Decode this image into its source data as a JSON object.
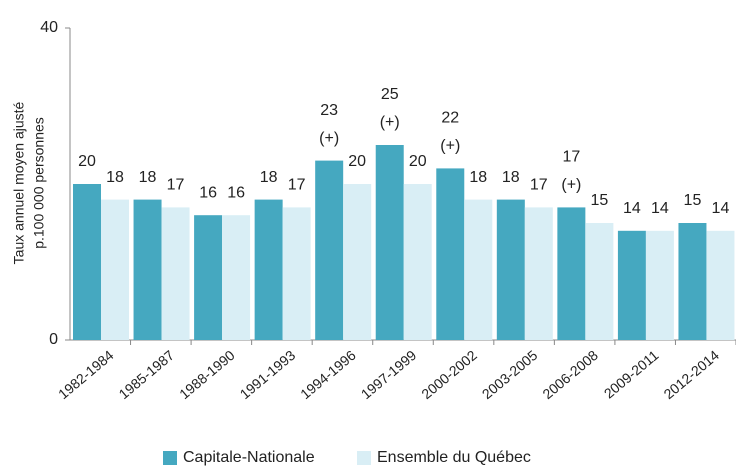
{
  "chart_data": {
    "type": "bar",
    "y_label": [
      "Taux annuel moyen ajusté",
      "p.100 000 personnes"
    ],
    "categories": [
      "1982-1984",
      "1985-1987",
      "1988-1990",
      "1991-1993",
      "1994-1996",
      "1997-1999",
      "2000-2002",
      "2003-2005",
      "2006-2008",
      "2009-2011",
      "2012-2014"
    ],
    "series": [
      {
        "name": "Capitale-Nationale",
        "color": "#45a8c0",
        "values": [
          20,
          18,
          16,
          18,
          23,
          25,
          22,
          18,
          17,
          14,
          15
        ]
      },
      {
        "name": "Ensemble du Québec",
        "color": "#d9eef5",
        "values": [
          18,
          17,
          16,
          17,
          20,
          20,
          18,
          17,
          15,
          14,
          14
        ]
      }
    ],
    "annotations": [
      {
        "text": "(+)",
        "category": "1994-1996"
      },
      {
        "text": "(+)",
        "category": "1997-1999"
      },
      {
        "text": "(+)",
        "category": "2000-2002"
      },
      {
        "text": "(+)",
        "category": "2006-2008"
      }
    ],
    "ylim": [
      0,
      40
    ],
    "yticks": [
      0,
      40
    ],
    "grid": false,
    "legend": "bottom"
  }
}
